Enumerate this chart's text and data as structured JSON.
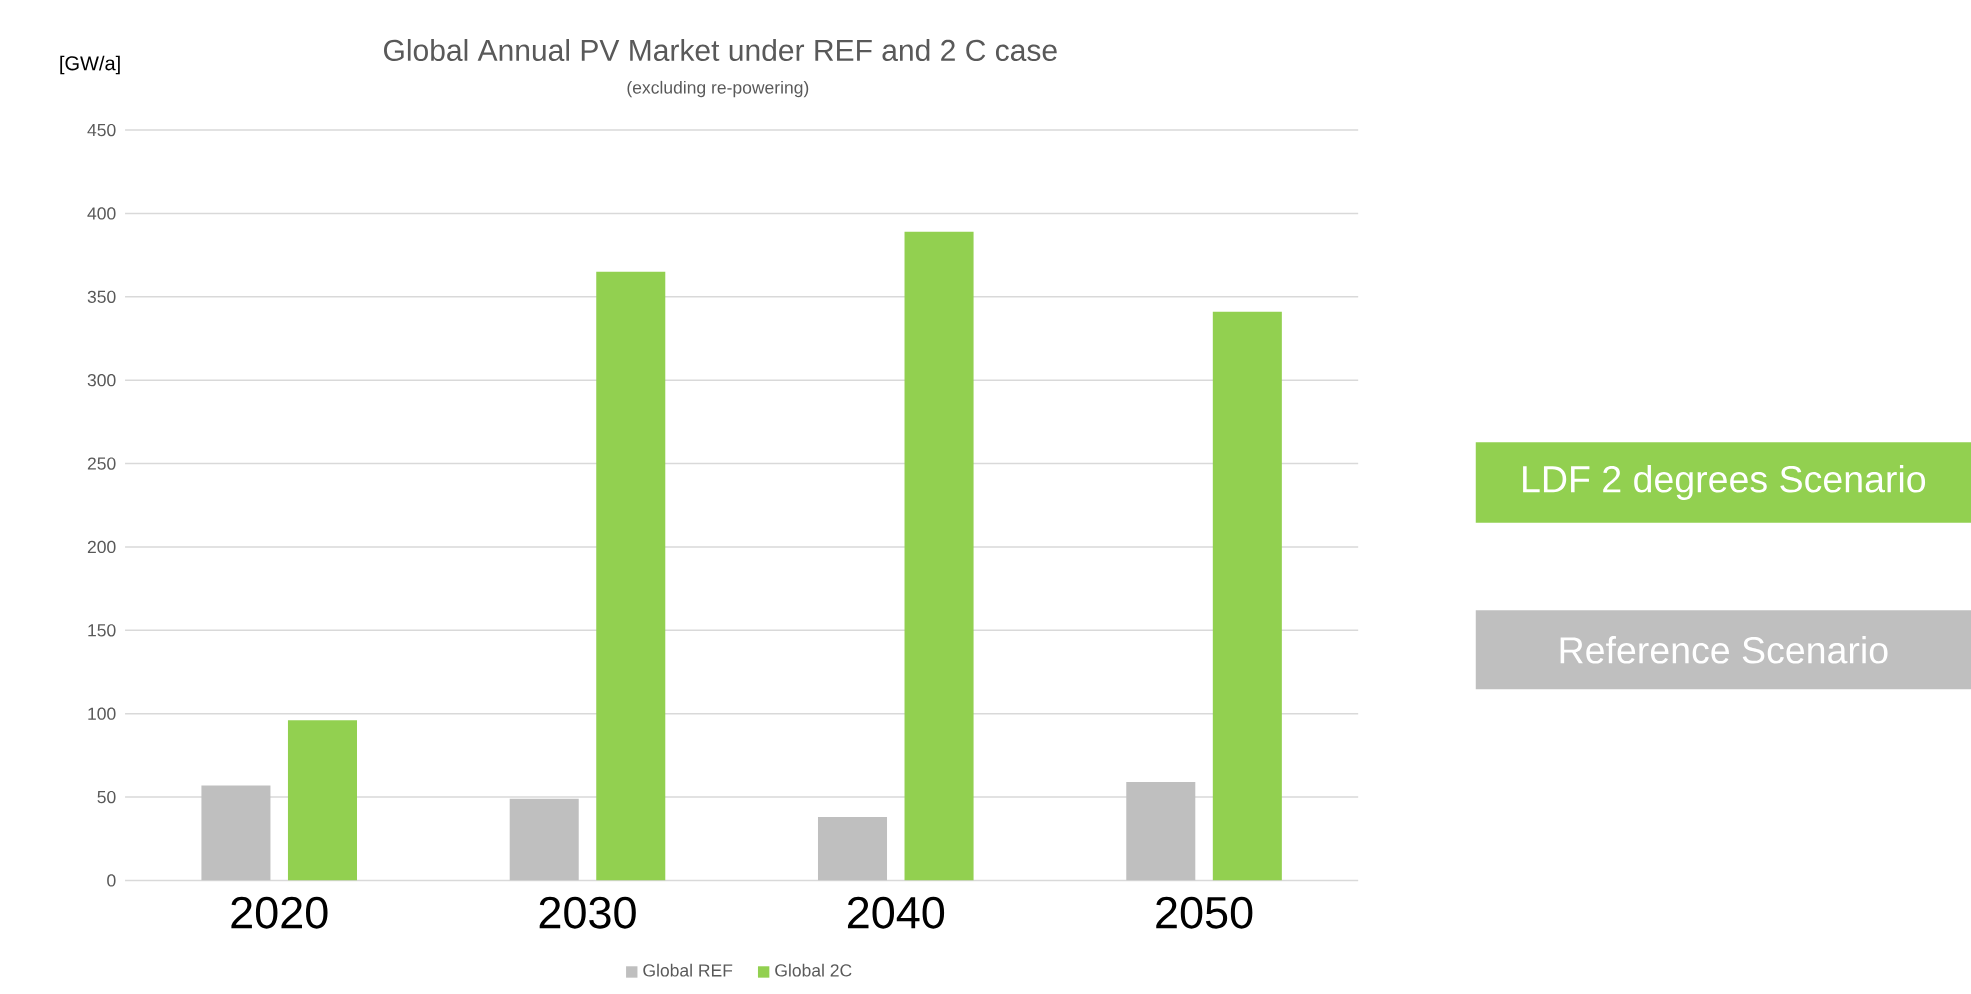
{
  "chart_data": {
    "type": "bar",
    "title": "Global Annual PV Market under REF and 2 C case",
    "subtitle": "(excluding re-powering)",
    "ylabel": "[GW/a]",
    "categories": [
      "2020",
      "2030",
      "2040",
      "2050"
    ],
    "series": [
      {
        "name": "Global REF",
        "color": "#bfbfbf",
        "values": [
          57,
          49,
          38,
          59
        ]
      },
      {
        "name": "Global 2C",
        "color": "#92d050",
        "values": [
          96,
          365,
          389,
          341
        ]
      }
    ],
    "ylim": [
      0,
      450
    ],
    "yticks": [
      0,
      50,
      100,
      150,
      200,
      250,
      300,
      350,
      400,
      450
    ],
    "grid": "y",
    "legend": "bottom",
    "annotations": [
      "LDF 2 degrees Scenario",
      "Reference Scenario"
    ]
  }
}
